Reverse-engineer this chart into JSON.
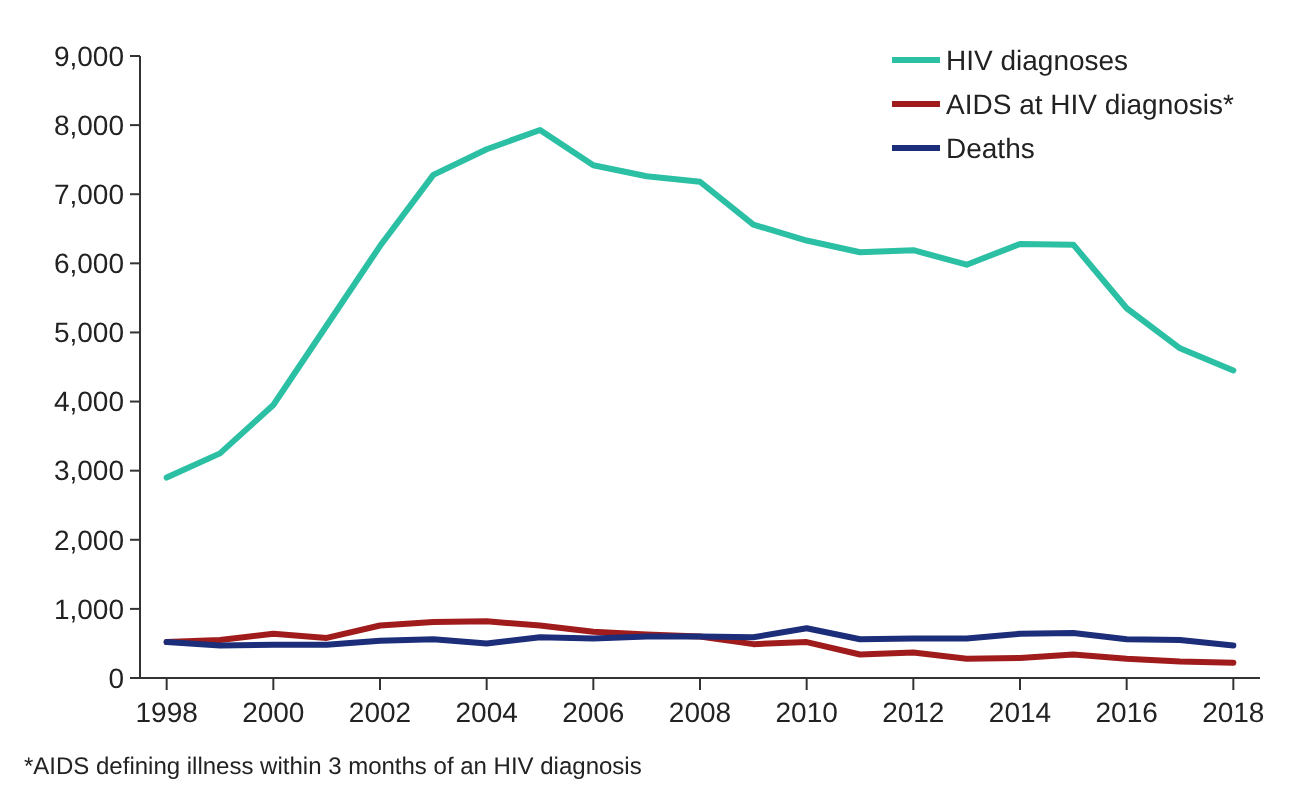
{
  "chart_data": {
    "type": "line",
    "x": [
      1998,
      1999,
      2000,
      2001,
      2002,
      2003,
      2004,
      2005,
      2006,
      2007,
      2008,
      2009,
      2010,
      2011,
      2012,
      2013,
      2014,
      2015,
      2016,
      2017,
      2018
    ],
    "series": [
      {
        "name": "HIV diagnoses",
        "color": "#2bbfa4",
        "values": [
          2900,
          3250,
          3950,
          5100,
          6250,
          7280,
          7650,
          7930,
          7420,
          7260,
          7180,
          6560,
          6330,
          6160,
          6190,
          5980,
          6280,
          6270,
          5350,
          4770,
          4450
        ]
      },
      {
        "name": "AIDS at HIV diagnosis*",
        "color": "#a01c1c",
        "values": [
          520,
          550,
          640,
          580,
          760,
          810,
          820,
          760,
          670,
          630,
          600,
          490,
          520,
          340,
          370,
          280,
          290,
          340,
          280,
          240,
          220
        ]
      },
      {
        "name": "Deaths",
        "color": "#1c2e7a",
        "values": [
          520,
          470,
          480,
          480,
          540,
          560,
          500,
          590,
          570,
          600,
          600,
          590,
          720,
          560,
          570,
          570,
          640,
          650,
          560,
          550,
          470
        ]
      }
    ],
    "xlim": [
      1997.5,
      2018.5
    ],
    "xticks": [
      1998,
      2000,
      2002,
      2004,
      2006,
      2008,
      2010,
      2012,
      2014,
      2016,
      2018
    ],
    "ylim": [
      0,
      9000
    ],
    "yticks": [
      {
        "value": 0,
        "label": "0"
      },
      {
        "value": 1000,
        "label": "1,000"
      },
      {
        "value": 2000,
        "label": "2,000"
      },
      {
        "value": 3000,
        "label": "3,000"
      },
      {
        "value": 4000,
        "label": "4,000"
      },
      {
        "value": 5000,
        "label": "5,000"
      },
      {
        "value": 6000,
        "label": "6,000"
      },
      {
        "value": 7000,
        "label": "7,000"
      },
      {
        "value": 8000,
        "label": "8,000"
      },
      {
        "value": 9000,
        "label": "9,000"
      }
    ],
    "legend": "top right",
    "grid": false,
    "marker": "none",
    "line_style": "solid",
    "annotations": [
      "*AIDS defining illness within 3 months of an HIV diagnosis"
    ]
  }
}
